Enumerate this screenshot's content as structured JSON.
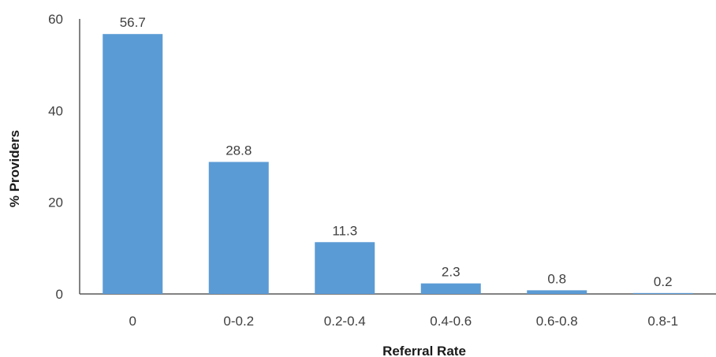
{
  "chart_data": {
    "type": "bar",
    "title": "",
    "xlabel": "Referral Rate",
    "ylabel": "% Providers",
    "categories": [
      "0",
      "0-0.2",
      "0.2-0.4",
      "0.4-0.6",
      "0.6-0.8",
      "0.8-1"
    ],
    "values": [
      56.7,
      28.8,
      11.3,
      2.3,
      0.8,
      0.2
    ],
    "data_labels": [
      "56.7",
      "28.8",
      "11.3",
      "2.3",
      "0.8",
      "0.2"
    ],
    "ylim": [
      0,
      60
    ],
    "yticks": [
      "0",
      "20",
      "40",
      "60"
    ],
    "grid": false,
    "legend": "none",
    "colors": {
      "bar": "#5b9bd5",
      "axis": "#595959"
    }
  }
}
